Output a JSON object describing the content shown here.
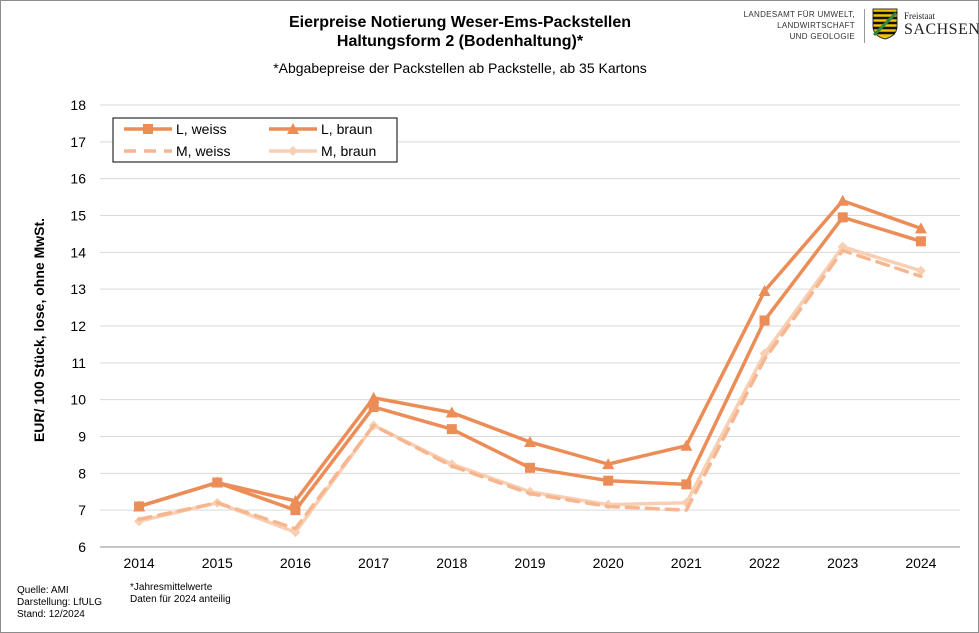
{
  "header": {
    "title_line1": "Eierpreise Notierung Weser-Ems-Packstellen",
    "title_line2": "Haltungsform 2 (Bodenhaltung)*",
    "subtitle": "*Abgabepreise der Packstellen ab Packstelle, ab 35 Kartons"
  },
  "logo": {
    "line1": "LANDESAMT FÜR UMWELT,",
    "line2": "LANDWIRTSCHAFT",
    "line3": "UND GEOLOGIE",
    "brand_small": "Freistaat",
    "brand_big": "SACHSEN"
  },
  "footer": {
    "source": "Quelle: AMI",
    "credit": "Darstellung: LfULG",
    "date": "Stand: 12/2024",
    "note1": "*Jahresmittelwerte",
    "note2": "Daten für 2024 anteilig"
  },
  "chart_data": {
    "type": "line",
    "title": "Eierpreise Notierung Weser-Ems-Packstellen Haltungsform 2 (Bodenhaltung)*",
    "xlabel": "",
    "ylabel": "EUR/ 100 Stück, lose, ohne MwSt.",
    "ylim": [
      6,
      18
    ],
    "yticks": [
      6,
      7,
      8,
      9,
      10,
      11,
      12,
      13,
      14,
      15,
      16,
      17,
      18
    ],
    "grid": true,
    "legend_position": "top-left",
    "categories": [
      "2014",
      "2015",
      "2016",
      "2017",
      "2018",
      "2019",
      "2020",
      "2021",
      "2022",
      "2023",
      "2024"
    ],
    "series": [
      {
        "name": "L, weiss",
        "color": "#ec8d57",
        "marker": "square",
        "dash": false,
        "values": [
          7.1,
          7.75,
          7.0,
          9.8,
          9.2,
          8.15,
          7.8,
          7.7,
          12.15,
          14.95,
          14.3
        ]
      },
      {
        "name": "L, braun",
        "color": "#ec8d57",
        "marker": "triangle",
        "dash": false,
        "values": [
          7.1,
          7.75,
          7.25,
          10.05,
          9.65,
          8.85,
          8.25,
          8.75,
          12.95,
          15.4,
          14.65
        ]
      },
      {
        "name": "M, weiss",
        "color": "#f5b690",
        "marker": "none",
        "dash": true,
        "values": [
          6.75,
          7.2,
          6.5,
          9.3,
          8.2,
          7.45,
          7.1,
          7.0,
          11.1,
          14.05,
          13.35
        ]
      },
      {
        "name": "M, braun",
        "color": "#f9cfb3",
        "marker": "diamond",
        "dash": false,
        "values": [
          6.7,
          7.2,
          6.4,
          9.3,
          8.25,
          7.5,
          7.15,
          7.2,
          11.25,
          14.15,
          13.5
        ]
      }
    ]
  }
}
